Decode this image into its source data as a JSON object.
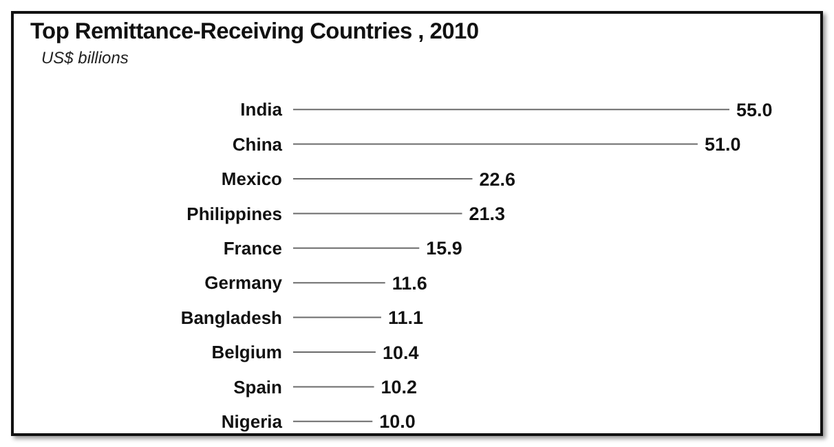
{
  "chart_data": {
    "type": "bar",
    "orientation": "horizontal",
    "title": "Top Remittance-Receiving Countries , 2010",
    "subtitle": "US$ billions",
    "categories": [
      "India",
      "China",
      "Mexico",
      "Philippines",
      "France",
      "Germany",
      "Bangladesh",
      "Belgium",
      "Spain",
      "Nigeria"
    ],
    "values": [
      55.0,
      51.0,
      22.6,
      21.3,
      15.9,
      11.6,
      11.1,
      10.4,
      10.2,
      10.0
    ],
    "value_labels": [
      "55.0",
      "51.0",
      "22.6",
      "21.3",
      "15.9",
      "11.6",
      "11.1",
      "10.4",
      "10.2",
      "10.0"
    ],
    "color": "#6b6b6b",
    "grid": false,
    "legend": false
  }
}
